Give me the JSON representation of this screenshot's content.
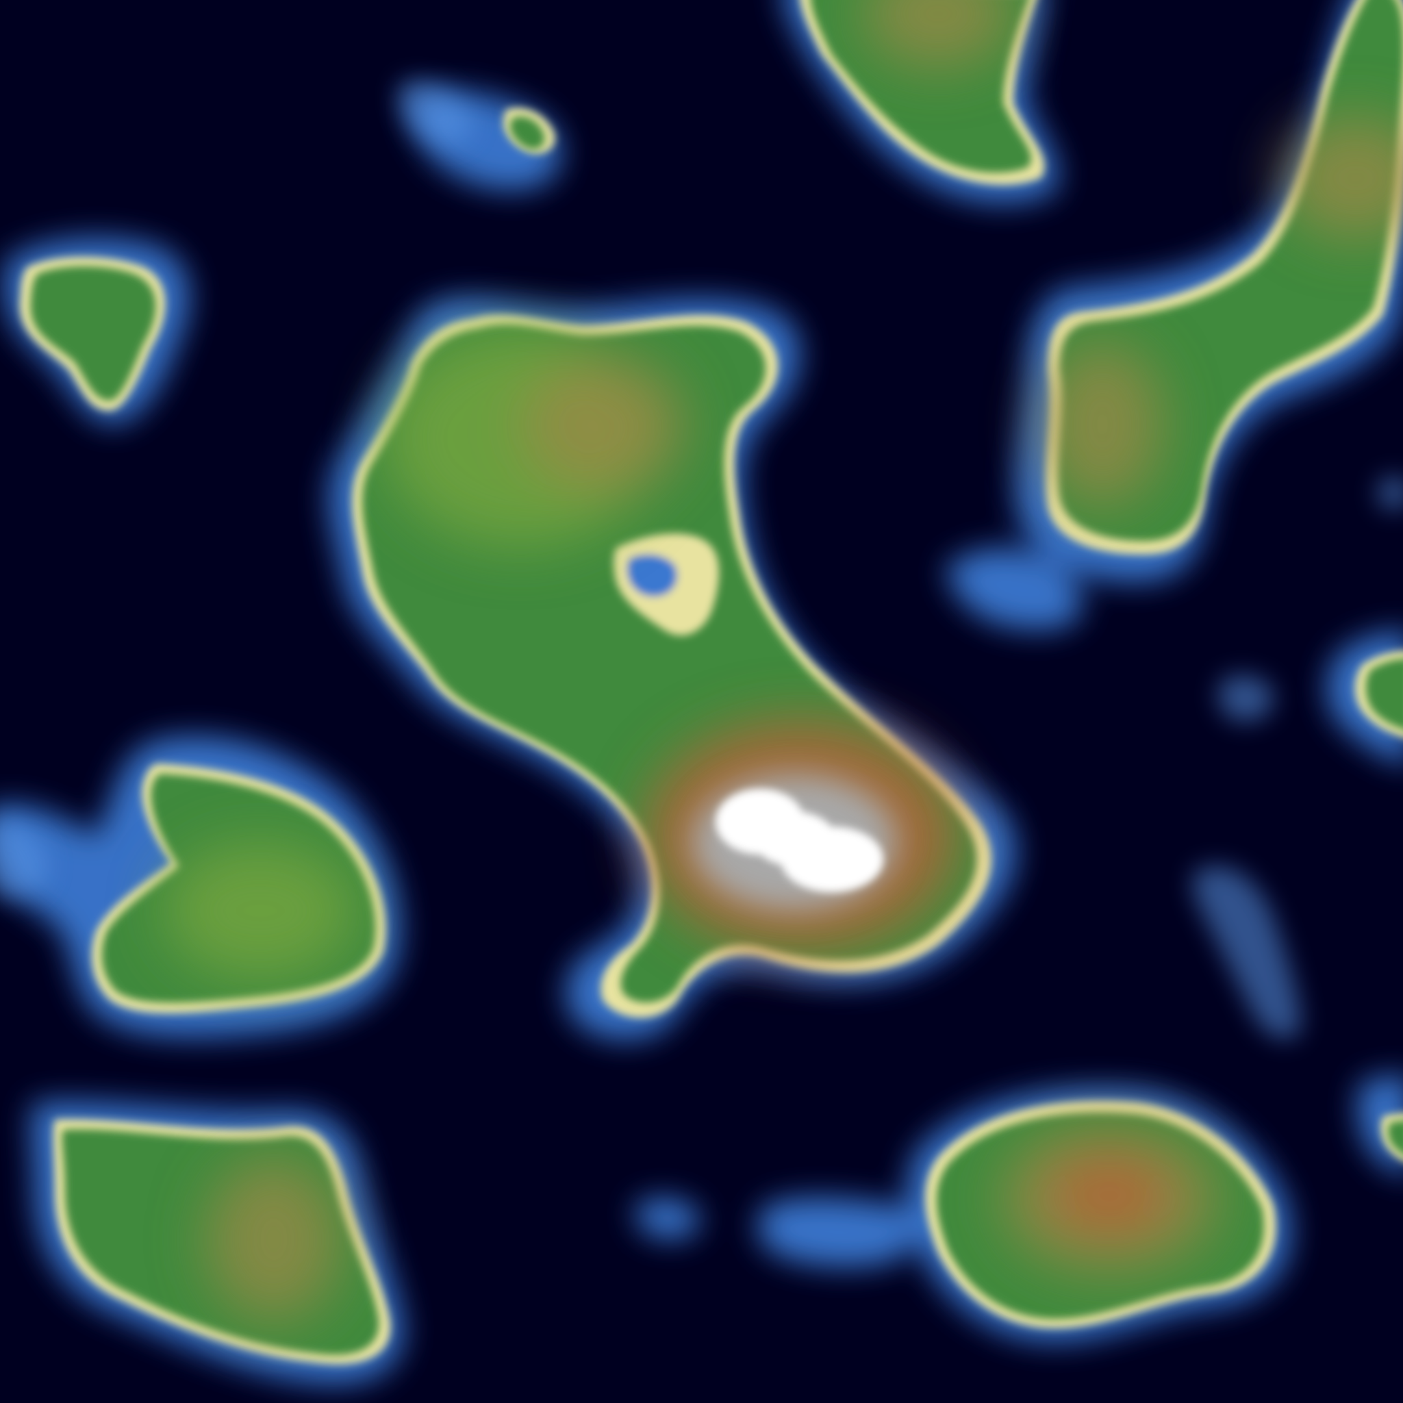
{
  "map": {
    "style": "procedural-heightmap-terrain",
    "colors": {
      "deep_ocean": "#000020",
      "shallow_water": "#3a78d0",
      "shallow_water_light": "#5a96e6",
      "beach": "#e8e3a0",
      "lowland": "#3f8a3c",
      "midland": "#7ca83f",
      "highland": "#9a8a45",
      "mountain": "#b2643a",
      "rock": "#a8a8a8",
      "snow": "#ffffff"
    },
    "features": [
      {
        "name": "central-island",
        "type": "island",
        "peak": "snow-capped-mountain"
      },
      {
        "name": "north-island",
        "type": "island",
        "peak": "highland"
      },
      {
        "name": "northeast-island",
        "type": "island",
        "peak": "highland"
      },
      {
        "name": "west-islet",
        "type": "islet",
        "peak": "lowland"
      },
      {
        "name": "north-islet",
        "type": "islet",
        "peak": "lowland"
      },
      {
        "name": "west-island",
        "type": "island",
        "peak": "lowland"
      },
      {
        "name": "southwest-island",
        "type": "island",
        "peak": "highland"
      },
      {
        "name": "southeast-island",
        "type": "island",
        "peak": "highland"
      },
      {
        "name": "east-edge-islet",
        "type": "islet",
        "peak": "lowland"
      },
      {
        "name": "southeast-edge-islet",
        "type": "islet",
        "peak": "lowland"
      }
    ],
    "shoals": [
      {
        "name": "south-shoal"
      },
      {
        "name": "east-shoal"
      },
      {
        "name": "small-south-shoal"
      },
      {
        "name": "east-mid-shoal"
      }
    ]
  }
}
